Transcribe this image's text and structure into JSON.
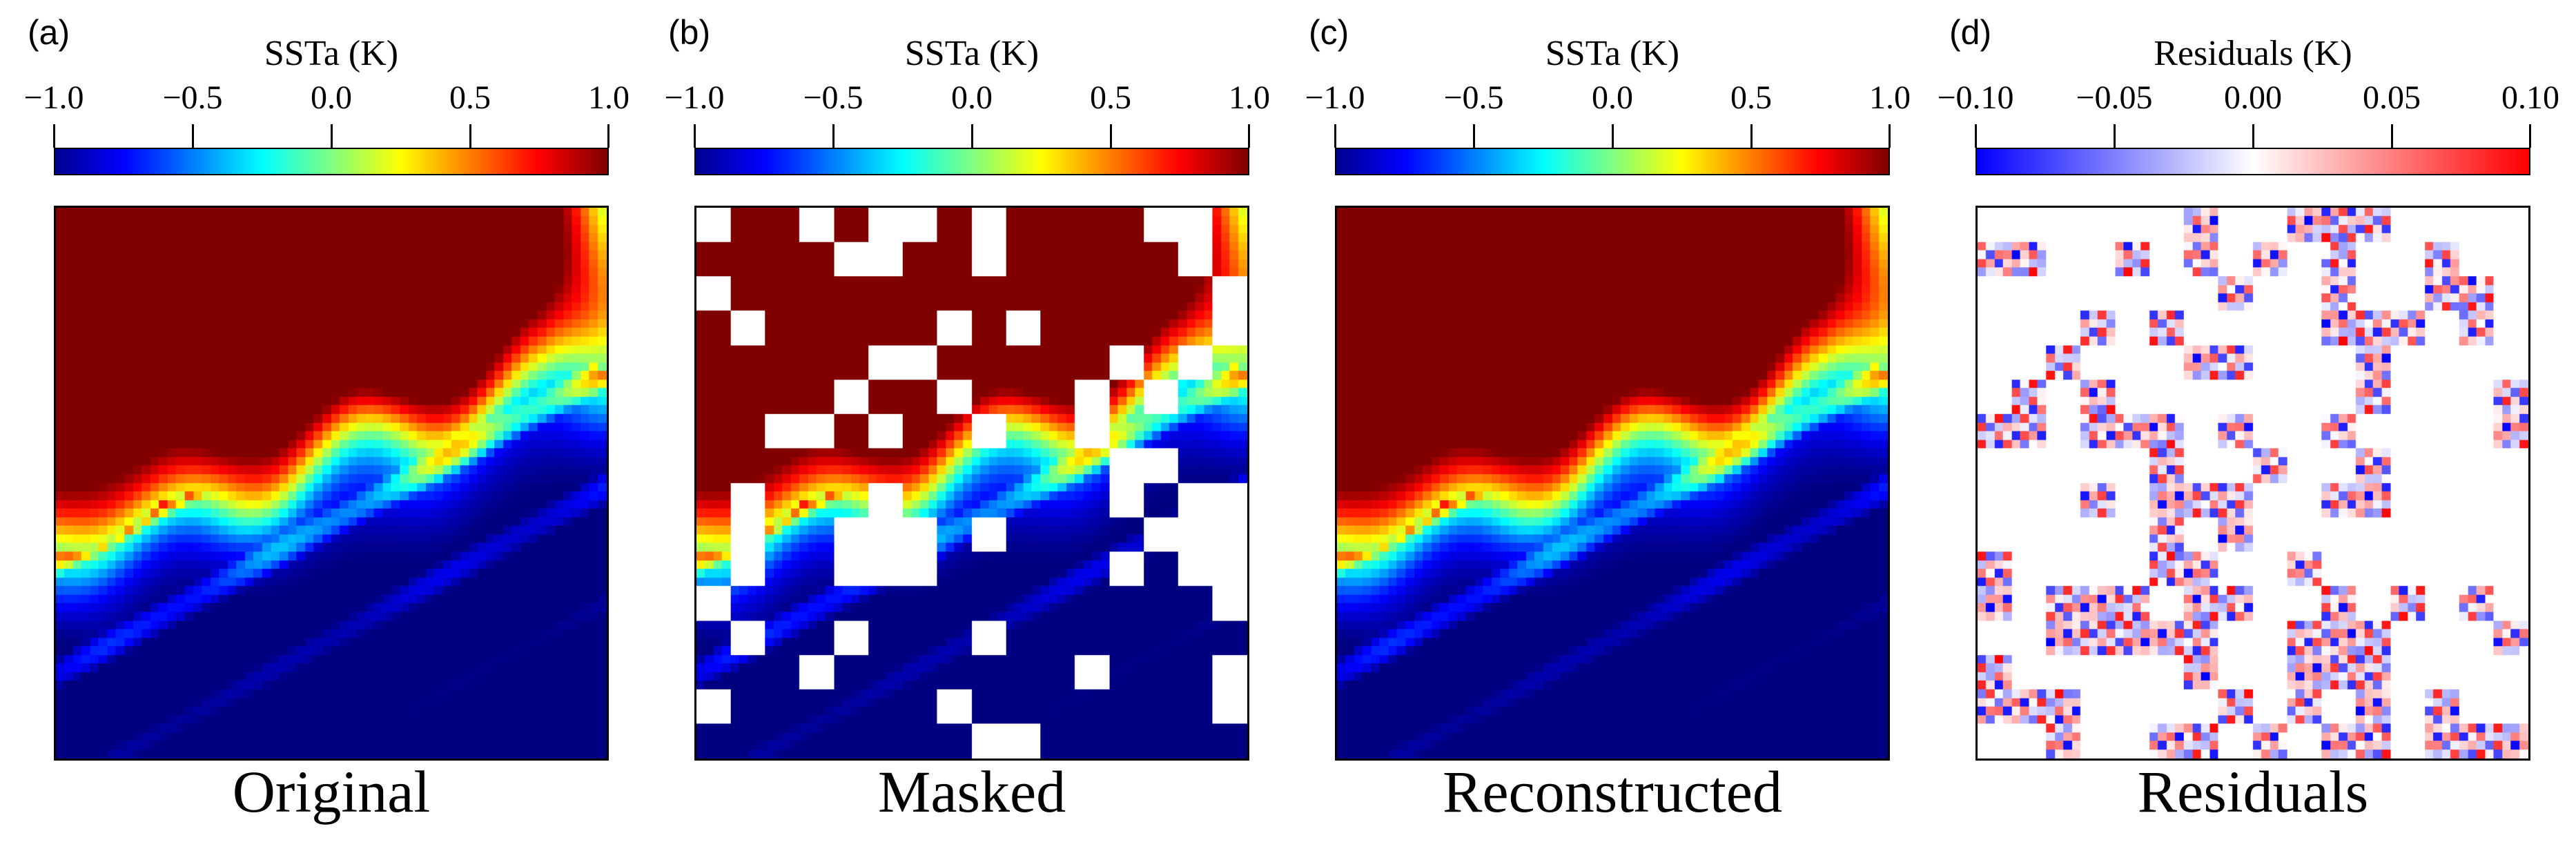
{
  "chart_data": [
    {
      "type": "heatmap",
      "panel_label": "(a)",
      "title": "Original",
      "colorbar": {
        "label": "SSTa (K)",
        "ticks": [
          "−1.0",
          "−0.5",
          "0.0",
          "0.5",
          "1.0"
        ],
        "tick_values": [
          -1.0,
          -0.5,
          0.0,
          0.5,
          1.0
        ],
        "range": [
          -1.0,
          1.0
        ],
        "colormap": "jet"
      },
      "field": "sst",
      "masked": false
    },
    {
      "type": "heatmap",
      "panel_label": "(b)",
      "title": "Masked",
      "colorbar": {
        "label": "SSTa (K)",
        "ticks": [
          "−1.0",
          "−0.5",
          "0.0",
          "0.5",
          "1.0"
        ],
        "tick_values": [
          -1.0,
          -0.5,
          0.0,
          0.5,
          1.0
        ],
        "range": [
          -1.0,
          1.0
        ],
        "colormap": "jet"
      },
      "field": "sst",
      "masked": true,
      "mask_grid_size": 16,
      "masked_cells": [
        [
          0,
          0
        ],
        [
          0,
          3
        ],
        [
          0,
          5
        ],
        [
          0,
          6
        ],
        [
          0,
          8
        ],
        [
          0,
          13
        ],
        [
          0,
          14
        ],
        [
          1,
          4
        ],
        [
          1,
          5
        ],
        [
          1,
          8
        ],
        [
          1,
          14
        ],
        [
          2,
          0
        ],
        [
          2,
          15
        ],
        [
          3,
          1
        ],
        [
          3,
          7
        ],
        [
          3,
          9
        ],
        [
          3,
          15
        ],
        [
          4,
          5
        ],
        [
          4,
          6
        ],
        [
          4,
          12
        ],
        [
          4,
          14
        ],
        [
          5,
          4
        ],
        [
          5,
          7
        ],
        [
          5,
          11
        ],
        [
          5,
          13
        ],
        [
          6,
          2
        ],
        [
          6,
          3
        ],
        [
          6,
          5
        ],
        [
          6,
          8
        ],
        [
          6,
          11
        ],
        [
          7,
          12
        ],
        [
          7,
          13
        ],
        [
          8,
          1
        ],
        [
          8,
          5
        ],
        [
          8,
          12
        ],
        [
          8,
          14
        ],
        [
          8,
          15
        ],
        [
          9,
          1
        ],
        [
          9,
          4
        ],
        [
          9,
          5
        ],
        [
          9,
          6
        ],
        [
          9,
          8
        ],
        [
          9,
          13
        ],
        [
          9,
          14
        ],
        [
          9,
          15
        ],
        [
          10,
          1
        ],
        [
          10,
          4
        ],
        [
          10,
          5
        ],
        [
          10,
          6
        ],
        [
          10,
          12
        ],
        [
          10,
          14
        ],
        [
          10,
          15
        ],
        [
          11,
          0
        ],
        [
          11,
          15
        ],
        [
          12,
          1
        ],
        [
          12,
          4
        ],
        [
          12,
          8
        ],
        [
          13,
          3
        ],
        [
          13,
          11
        ],
        [
          13,
          15
        ],
        [
          14,
          0
        ],
        [
          14,
          7
        ],
        [
          14,
          15
        ],
        [
          15,
          8
        ],
        [
          15,
          9
        ]
      ]
    },
    {
      "type": "heatmap",
      "panel_label": "(c)",
      "title": "Reconstructed",
      "colorbar": {
        "label": "SSTa (K)",
        "ticks": [
          "−1.0",
          "−0.5",
          "0.0",
          "0.5",
          "1.0"
        ],
        "tick_values": [
          -1.0,
          -0.5,
          0.0,
          0.5,
          1.0
        ],
        "range": [
          -1.0,
          1.0
        ],
        "colormap": "jet"
      },
      "field": "sst",
      "masked": false
    },
    {
      "type": "heatmap",
      "panel_label": "(d)",
      "title": "Residuals",
      "colorbar": {
        "label": "Residuals (K)",
        "ticks": [
          "−0.10",
          "−0.05",
          "0.00",
          "0.05",
          "0.10"
        ],
        "tick_values": [
          -0.1,
          -0.05,
          0.0,
          0.05,
          0.1
        ],
        "range": [
          -0.1,
          0.1
        ],
        "colormap": "bwr"
      },
      "field": "residuals",
      "masked": false
    }
  ]
}
